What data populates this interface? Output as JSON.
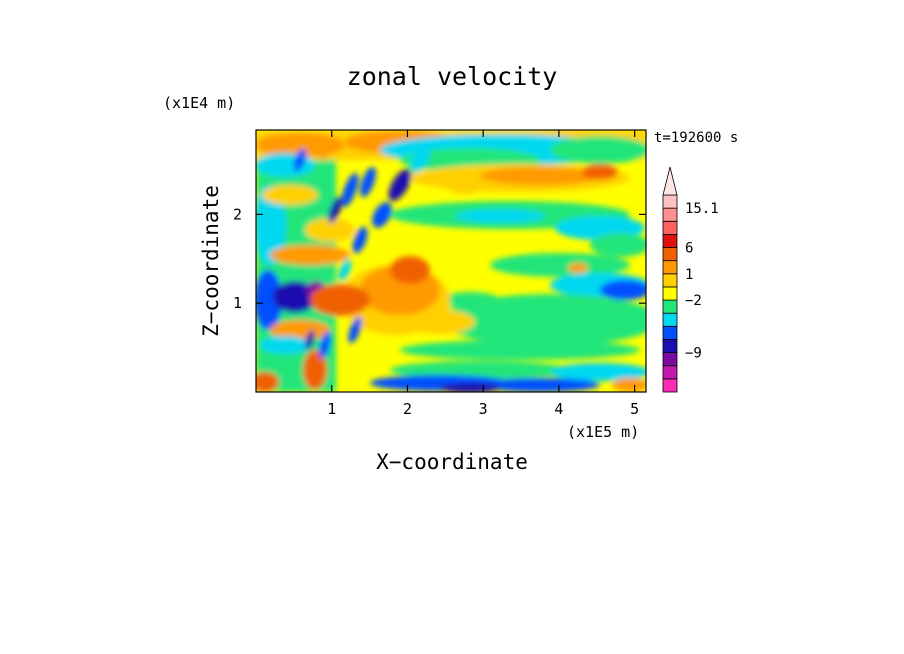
{
  "chart_data": {
    "type": "heatmap",
    "title": "zonal velocity",
    "xlabel": "X−coordinate",
    "ylabel": "Z−coordinate",
    "x_unit": "(x1E5 m)",
    "y_unit": "(x1E4 m)",
    "time_label": "t=192600 s",
    "xlim": [
      0,
      5.15
    ],
    "ylim": [
      0,
      2.95
    ],
    "x_ticks": [
      {
        "value": 1,
        "label": "1"
      },
      {
        "value": 2,
        "label": "2"
      },
      {
        "value": 3,
        "label": "3"
      },
      {
        "value": 4,
        "label": "4"
      },
      {
        "value": 5,
        "label": "5"
      }
    ],
    "y_ticks": [
      {
        "value": 1,
        "label": "1"
      },
      {
        "value": 2,
        "label": "2"
      }
    ],
    "colorbar": {
      "colors": [
        "#ff2ab6",
        "#c21ab0",
        "#7a0aa0",
        "#1a10b0",
        "#0050ff",
        "#00d8f0",
        "#22e57a",
        "#ffff00",
        "#ffd000",
        "#ff9a00",
        "#f06000",
        "#e01010",
        "#ff6060",
        "#ff9090",
        "#ffc2c2"
      ],
      "over_color": "#ffe6e6",
      "labels": [
        {
          "band": 13,
          "label": "15.1"
        },
        {
          "band": 10,
          "label": "6"
        },
        {
          "band": 8,
          "label": "1"
        },
        {
          "band": 6,
          "label": "−2"
        },
        {
          "band": 2,
          "label": "−9"
        }
      ]
    },
    "grid": false
  }
}
